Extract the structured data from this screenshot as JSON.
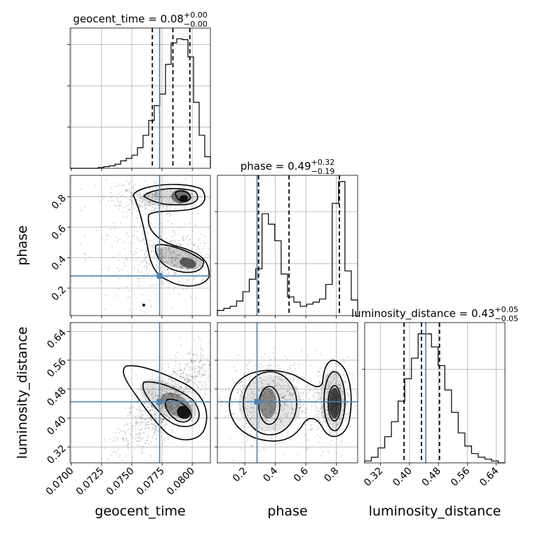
{
  "chart_data": {
    "type": "corner",
    "parameters": [
      "geocent_time",
      "phase",
      "luminosity_distance"
    ],
    "truths": {
      "geocent_time": 0.0773,
      "phase": 0.28,
      "luminosity_distance": 0.445
    },
    "titles": [
      {
        "param": "geocent_time",
        "label": "geocent_time",
        "median": "0.08",
        "plus": "+0.00",
        "minus": "−0.00"
      },
      {
        "param": "phase",
        "label": "phase",
        "median": "0.49",
        "plus": "+0.32",
        "minus": "−0.19"
      },
      {
        "param": "luminosity_distance",
        "label": "luminosity_distance",
        "median": "0.43",
        "plus": "+0.05",
        "minus": "−0.05"
      }
    ],
    "axes": {
      "geocent_time": {
        "label": "geocent_time",
        "range": [
          0.0699,
          0.0815
        ],
        "ticks": [
          0.07,
          0.0725,
          0.075,
          0.0775,
          0.08
        ],
        "tick_labels": [
          "0.0700",
          "0.0725",
          "0.0750",
          "0.0775",
          "0.0800"
        ]
      },
      "phase": {
        "label": "phase",
        "range": [
          0.02,
          0.94
        ],
        "ticks": [
          0.2,
          0.4,
          0.6,
          0.8
        ],
        "tick_labels": [
          "0.2",
          "0.4",
          "0.6",
          "0.8"
        ]
      },
      "luminosity_distance": {
        "label": "luminosity_distance",
        "range": [
          0.276,
          0.664
        ],
        "ticks": [
          0.32,
          0.4,
          0.48,
          0.56,
          0.64
        ],
        "tick_labels": [
          "0.32",
          "0.40",
          "0.48",
          "0.56",
          "0.64"
        ]
      }
    },
    "histograms": {
      "geocent_time": {
        "edges_range": [
          0.0699,
          0.0815
        ],
        "counts": [
          0,
          0,
          0,
          0,
          0,
          1,
          2,
          3,
          5,
          9,
          12,
          16,
          25,
          40,
          58,
          76,
          90,
          126,
          152,
          157,
          156,
          135,
          80,
          40,
          14
        ],
        "quantiles": [
          0.0767,
          0.0784,
          0.0798
        ]
      },
      "phase": {
        "edges_range": [
          0.02,
          0.94
        ],
        "counts": [
          5,
          7,
          9,
          14,
          23,
          35,
          45,
          98,
          88,
          72,
          40,
          18,
          13,
          9,
          11,
          13,
          16,
          30,
          108,
          129,
          43,
          15
        ],
        "quantiles": [
          0.29,
          0.49,
          0.82
        ]
      },
      "luminosity_distance": {
        "edges_range": [
          0.276,
          0.664
        ],
        "counts": [
          1,
          3,
          8,
          14,
          22,
          33,
          45,
          56,
          69,
          69,
          62,
          52,
          39,
          27,
          16,
          9,
          5,
          3,
          2,
          1,
          0
        ],
        "quantiles": [
          0.385,
          0.433,
          0.483
        ]
      }
    },
    "ylim_max": {
      "geocent_time": 170,
      "phase": 135,
      "luminosity_distance": 75
    },
    "y_ticks": [
      50,
      100,
      150
    ],
    "grid": true
  }
}
